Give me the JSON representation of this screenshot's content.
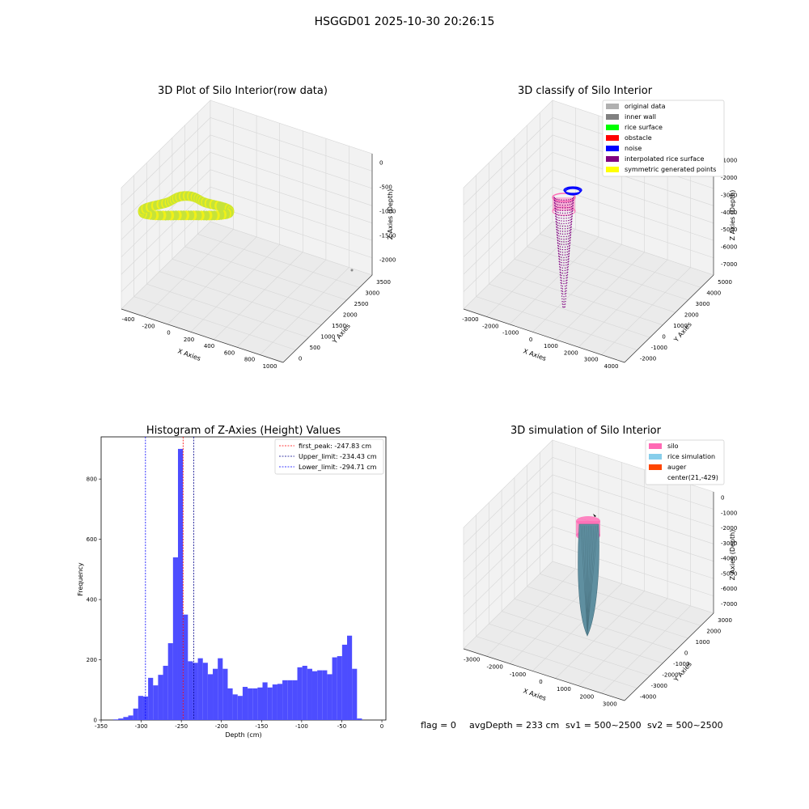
{
  "suptitle": "HSGGD01 2025-10-30 20:26:15",
  "footer": {
    "flag": "flag = 0",
    "avg_depth": "avgDepth = 233 cm",
    "sv1": "sv1 = 500~2500",
    "sv2": "sv2 = 500~2500"
  },
  "panels": {
    "raw": {
      "title": "3D Plot of Silo Interior(row data)",
      "xlabel": "X Axies",
      "ylabel": "Y Axies",
      "zlabel": "Z Axies (Depth)",
      "xticks": [
        "-400",
        "-200",
        "0",
        "200",
        "400",
        "600",
        "800",
        "1000"
      ],
      "yticks": [
        "0",
        "500",
        "1000",
        "1500",
        "2000",
        "2500",
        "3000",
        "3500"
      ],
      "zticks": [
        "0",
        "-500",
        "-1000",
        "-1500",
        "-2000"
      ],
      "colors": {
        "points": "#c6e33a",
        "points_alt": "#f0f018"
      }
    },
    "classify": {
      "title": "3D classify of Silo Interior",
      "xlabel": "X Axies",
      "ylabel": "Y Axies",
      "zlabel": "Z Axies (Depth)",
      "xticks": [
        "-3000",
        "-2000",
        "-1000",
        "0",
        "1000",
        "2000",
        "3000",
        "4000"
      ],
      "yticks": [
        "-2000",
        "-1000",
        "0",
        "1000",
        "2000",
        "3000",
        "4000",
        "5000"
      ],
      "zticks": [
        "-1000",
        "-2000",
        "-3000",
        "-4000",
        "-5000",
        "-6000",
        "-7000"
      ],
      "legend": [
        {
          "label": "original data",
          "color": "#b0b0b0"
        },
        {
          "label": "inner wall",
          "color": "#808080"
        },
        {
          "label": "rice surface",
          "color": "#00ff00"
        },
        {
          "label": "obstacle",
          "color": "#ff0000"
        },
        {
          "label": "noise",
          "color": "#0000ff"
        },
        {
          "label": "interpolated rice surface",
          "color": "#800080"
        },
        {
          "label": "symmetric generated points",
          "color": "#ffff00"
        }
      ],
      "colors": {
        "silo": "#ff69b4",
        "points": "#800080",
        "noise": "#0000ff"
      }
    },
    "simulation": {
      "title": "3D simulation of Silo Interior",
      "xlabel": "X Axies",
      "ylabel": "Y Axies",
      "zlabel": "Z Axies (Depth)",
      "xticks": [
        "-3000",
        "-2000",
        "-1000",
        "0",
        "1000",
        "2000",
        "3000"
      ],
      "yticks": [
        "-4000",
        "-3000",
        "-2000",
        "-1000",
        "0",
        "1000",
        "2000",
        "3000"
      ],
      "zticks": [
        "0",
        "-1000",
        "-2000",
        "-3000",
        "-4000",
        "-5000",
        "-6000",
        "-7000"
      ],
      "legend": [
        {
          "label": "silo",
          "color": "#ff69b4"
        },
        {
          "label": "rice simulation",
          "color": "#87ceeb"
        },
        {
          "label": "auger",
          "color": "#ff4500"
        },
        {
          "label": "center(21,-429)",
          "color": ""
        }
      ],
      "colors": {
        "silo": "#ff69b4",
        "rice": "#5f8fa0"
      }
    }
  },
  "chart_data": [
    {
      "type": "bar",
      "title": "Histogram of Z-Axies (Height) Values",
      "xlabel": "Depth (cm)",
      "ylabel": "Frequency",
      "xlim": [
        -350,
        5
      ],
      "ylim": [
        0,
        940
      ],
      "xticks": [
        -350,
        -300,
        -250,
        -200,
        -150,
        -100,
        -50,
        0
      ],
      "yticks": [
        0,
        200,
        400,
        600,
        800
      ],
      "bin_start": -334.8,
      "bin_width": 6.2,
      "values": [
        2,
        5,
        10,
        15,
        38,
        80,
        78,
        140,
        115,
        150,
        180,
        255,
        540,
        900,
        350,
        195,
        190,
        205,
        190,
        152,
        170,
        205,
        170,
        105,
        85,
        80,
        110,
        105,
        105,
        108,
        125,
        108,
        118,
        120,
        132,
        132,
        132,
        175,
        180,
        170,
        162,
        165,
        165,
        152,
        208,
        212,
        250,
        280,
        170,
        5
      ],
      "bar_color": "#4d4dff",
      "vlines": [
        {
          "label": "first_peak: -247.83 cm",
          "x": -247.83,
          "color": "#ff0000"
        },
        {
          "label": "Upper_limit: -234.43 cm",
          "x": -234.43,
          "color": "#00008b"
        },
        {
          "label": "Lower_limit: -294.71 cm",
          "x": -294.71,
          "color": "#0000ff"
        }
      ],
      "legend_position": "top-right"
    }
  ]
}
